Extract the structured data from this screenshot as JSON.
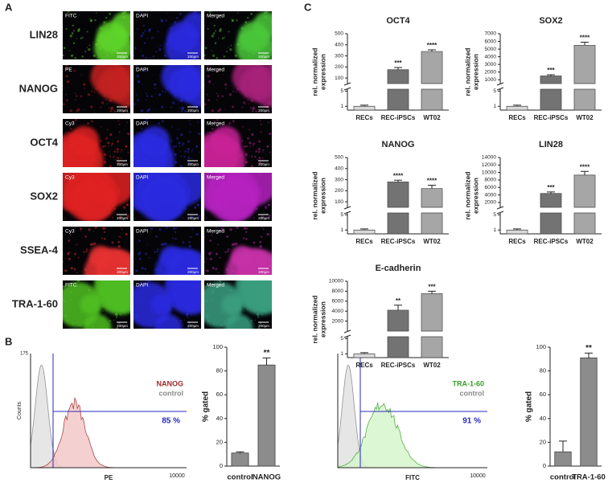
{
  "panels": {
    "A": "A",
    "B": "B",
    "C": "C"
  },
  "immunostaining": {
    "scale_bar": "200μm",
    "rows": [
      {
        "marker": "LIN28",
        "channels": [
          "FITC",
          "DAPI",
          "Merged"
        ]
      },
      {
        "marker": "NANOG",
        "channels": [
          "PE",
          "DAPI",
          "Merged"
        ]
      },
      {
        "marker": "OCT4",
        "channels": [
          "Cy3",
          "DAPI",
          "Merged"
        ]
      },
      {
        "marker": "SOX2",
        "channels": [
          "Cy3",
          "DAPI",
          "Merged"
        ]
      },
      {
        "marker": "SSEA-4",
        "channels": [
          "Cy3",
          "DAPI",
          "Merged"
        ]
      },
      {
        "marker": "TRA-1-60",
        "channels": [
          "FITC",
          "DAPI",
          "Merged"
        ]
      }
    ]
  },
  "flow_cytometry": [
    {
      "y_label": "Counts",
      "y_max": 175,
      "x_label": "PE",
      "x_max": 10000,
      "sample": "NANOG",
      "control": "control",
      "gated": "85 %",
      "color": "#9b2a2a"
    },
    {
      "x_label": "FITC",
      "x_max": 10000,
      "sample": "TRA-1-60",
      "control": "control",
      "gated": "91 %",
      "color": "#3aa02a"
    }
  ],
  "chart_data": [
    {
      "type": "bar",
      "ylabel": "% gated",
      "categories": [
        "control",
        "NANOG"
      ],
      "values": [
        11,
        85
      ],
      "errors": [
        1,
        6
      ],
      "significance": [
        null,
        "**"
      ],
      "ylim": [
        0,
        100
      ],
      "yticks": [
        0,
        20,
        40,
        60,
        80,
        100
      ],
      "color": "#8c8c8c"
    },
    {
      "type": "bar",
      "ylabel": "% gated",
      "categories": [
        "control",
        "TRA-1-60"
      ],
      "values": [
        12,
        91
      ],
      "errors": [
        9,
        4
      ],
      "significance": [
        null,
        "**"
      ],
      "ylim": [
        0,
        100
      ],
      "yticks": [
        0,
        20,
        40,
        60,
        80,
        100
      ],
      "color": "#8c8c8c"
    },
    {
      "type": "bar",
      "broken_axis": true,
      "title": "OCT4",
      "ylabel": [
        "rel. normalized",
        "expression"
      ],
      "categories": [
        "RECs",
        "REC-iPSCs",
        "WT02"
      ],
      "values": [
        1,
        175,
        340
      ],
      "errors": [
        0.3,
        20,
        15
      ],
      "significance": [
        null,
        "***",
        "****"
      ],
      "colors": [
        "#d9d9d9",
        "#737373",
        "#a6a6a6"
      ],
      "ylim_low": [
        0,
        5.5
      ],
      "yticks_low": [
        1,
        5
      ],
      "ylim": [
        50,
        500
      ],
      "yticks": [
        100,
        200,
        300,
        400,
        500
      ]
    },
    {
      "type": "bar",
      "broken_axis": true,
      "title": "SOX2",
      "ylabel": [
        "rel. normalized",
        "expression"
      ],
      "categories": [
        "RECs",
        "REC-iPSCs",
        "WT02"
      ],
      "values": [
        1,
        1500,
        5500
      ],
      "errors": [
        0.3,
        150,
        400
      ],
      "significance": [
        null,
        "***",
        "****"
      ],
      "colors": [
        "#d9d9d9",
        "#737373",
        "#a6a6a6"
      ],
      "ylim_low": [
        0,
        5.5
      ],
      "yticks_low": [
        1,
        5
      ],
      "ylim": [
        500,
        7000
      ],
      "yticks": [
        1000,
        2000,
        3000,
        4000,
        5000,
        6000,
        7000
      ]
    },
    {
      "type": "bar",
      "broken_axis": true,
      "title": "NANOG",
      "ylabel": [
        "rel. normalized",
        "expression"
      ],
      "categories": [
        "RECs",
        "REC-iPSCs",
        "WT02"
      ],
      "values": [
        1,
        280,
        220
      ],
      "errors": [
        0.3,
        15,
        30
      ],
      "significance": [
        null,
        "****",
        "****"
      ],
      "colors": [
        "#d9d9d9",
        "#737373",
        "#a6a6a6"
      ],
      "ylim_low": [
        0,
        5.5
      ],
      "yticks_low": [
        1,
        5
      ],
      "ylim": [
        50,
        500
      ],
      "yticks": [
        100,
        200,
        300,
        400,
        500
      ]
    },
    {
      "type": "bar",
      "broken_axis": true,
      "title": "LIN28",
      "ylabel": [
        "rel. normalized",
        "expression"
      ],
      "categories": [
        "RECs",
        "REC-iPSCs",
        "WT02"
      ],
      "values": [
        1,
        4400,
        9300
      ],
      "errors": [
        0.3,
        400,
        1000
      ],
      "significance": [
        null,
        "***",
        "****"
      ],
      "colors": [
        "#d9d9d9",
        "#737373",
        "#a6a6a6"
      ],
      "ylim_low": [
        0,
        5.5
      ],
      "yticks_low": [
        1,
        5
      ],
      "ylim": [
        700,
        14000
      ],
      "yticks": [
        2000,
        4000,
        6000,
        8000,
        10000,
        12000,
        14000
      ]
    },
    {
      "type": "bar",
      "broken_axis": true,
      "title": "E-cadherin",
      "ylabel": [
        "rel. normalized",
        "expression"
      ],
      "categories": [
        "RECs",
        "REC-iPSCs",
        "WT02"
      ],
      "values": [
        1,
        4200,
        7500
      ],
      "errors": [
        0.3,
        1000,
        500
      ],
      "significance": [
        null,
        "**",
        "***"
      ],
      "colors": [
        "#d9d9d9",
        "#737373",
        "#a6a6a6"
      ],
      "ylim_low": [
        0,
        5.5
      ],
      "yticks_low": [
        1,
        5
      ],
      "ylim": [
        0,
        10000
      ],
      "yticks": [
        2000,
        4000,
        6000,
        8000,
        10000
      ]
    }
  ]
}
